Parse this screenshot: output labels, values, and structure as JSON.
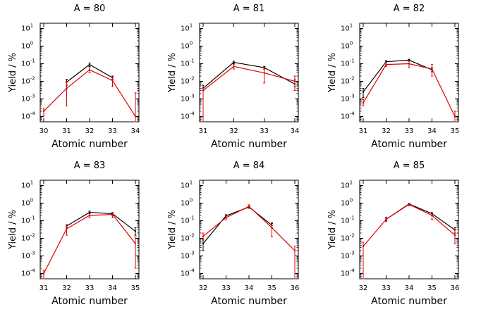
{
  "chart_data": [
    {
      "type": "line",
      "title": "A = 80",
      "xlabel": "Atomic number",
      "ylabel": "Yield / %",
      "yscale": "log",
      "ylim": [
        5e-05,
        20
      ],
      "yticks": [
        "10^1",
        "10^0",
        "10^-1",
        "10^-2",
        "10^-3",
        "10^-4"
      ],
      "x": [
        30,
        31,
        32,
        33,
        34
      ],
      "xlim": [
        30,
        34
      ],
      "series": [
        {
          "color": "#000000",
          "x": [
            31,
            32,
            33
          ],
          "y": [
            0.009,
            0.09,
            0.016
          ],
          "err_lo": [
            0.006,
            0.07,
            0.013
          ],
          "err_hi": [
            0.013,
            0.11,
            0.02
          ]
        },
        {
          "color": "#e00000",
          "x": [
            30,
            31,
            32,
            33,
            34
          ],
          "y": [
            0.0002,
            0.004,
            0.045,
            0.011,
            0.0001
          ],
          "err_lo": [
            0.00012,
            0.0004,
            0.03,
            0.005,
            3e-05
          ],
          "err_hi": [
            0.0003,
            0.01,
            0.06,
            0.017,
            0.0022
          ]
        }
      ]
    },
    {
      "type": "line",
      "title": "A = 81",
      "xlabel": "Atomic number",
      "ylabel": "Yield / %",
      "yscale": "log",
      "ylim": [
        5e-05,
        20
      ],
      "yticks": [
        "10^1",
        "10^0",
        "10^-1",
        "10^-2",
        "10^-3",
        "10^-4"
      ],
      "x": [
        31,
        32,
        33,
        34
      ],
      "xlim": [
        31,
        34
      ],
      "series": [
        {
          "color": "#000000",
          "x": [
            31,
            32,
            33,
            34
          ],
          "y": [
            0.004,
            0.12,
            0.06,
            0.007
          ],
          "err_lo": [
            0.003,
            0.1,
            0.05,
            0.005
          ],
          "err_hi": [
            0.006,
            0.14,
            0.07,
            0.012
          ]
        },
        {
          "color": "#e00000",
          "x": [
            31,
            32,
            33,
            34
          ],
          "y": [
            0.003,
            0.07,
            0.03,
            0.01
          ],
          "err_lo": [
            4e-05,
            0.05,
            0.008,
            0.003
          ],
          "err_hi": [
            0.004,
            0.09,
            0.06,
            0.02
          ]
        }
      ]
    },
    {
      "type": "line",
      "title": "A = 82",
      "xlabel": "Atomic number",
      "ylabel": "Yield / %",
      "yscale": "log",
      "ylim": [
        5e-05,
        20
      ],
      "yticks": [
        "10^1",
        "10^0",
        "10^-1",
        "10^-2",
        "10^-3",
        "10^-4"
      ],
      "x": [
        31,
        32,
        33,
        34,
        35
      ],
      "xlim": [
        31,
        35
      ],
      "series": [
        {
          "color": "#000000",
          "x": [
            31,
            32,
            33,
            34
          ],
          "y": [
            0.0025,
            0.13,
            0.16,
            0.045
          ],
          "err_lo": [
            0.0012,
            0.11,
            0.14,
            0.035
          ],
          "err_hi": [
            0.004,
            0.15,
            0.18,
            0.06
          ]
        },
        {
          "color": "#e00000",
          "x": [
            31,
            32,
            33,
            34,
            35
          ],
          "y": [
            0.0006,
            0.09,
            0.1,
            0.05,
            0.0001
          ],
          "err_lo": [
            0.0004,
            0.07,
            0.06,
            0.02,
            4e-05
          ],
          "err_hi": [
            0.0009,
            0.11,
            0.15,
            0.09,
            0.0002
          ]
        }
      ]
    },
    {
      "type": "line",
      "title": "A = 83",
      "xlabel": "Atomic number",
      "ylabel": "Yield / %",
      "yscale": "log",
      "ylim": [
        5e-05,
        20
      ],
      "yticks": [
        "10^1",
        "10^0",
        "10^-1",
        "10^-2",
        "10^-3",
        "10^-4"
      ],
      "x": [
        31,
        32,
        33,
        34,
        35
      ],
      "xlim": [
        31,
        35
      ],
      "series": [
        {
          "color": "#000000",
          "x": [
            32,
            33,
            34,
            35
          ],
          "y": [
            0.05,
            0.3,
            0.25,
            0.025
          ],
          "err_lo": [
            0.04,
            0.25,
            0.2,
            0.015
          ],
          "err_hi": [
            0.06,
            0.35,
            0.3,
            0.04
          ]
        },
        {
          "color": "#e00000",
          "x": [
            31,
            32,
            33,
            34,
            35
          ],
          "y": [
            0.0001,
            0.035,
            0.2,
            0.23,
            0.005
          ],
          "err_lo": [
            5e-05,
            0.015,
            0.15,
            0.15,
            0.0002
          ],
          "err_hi": [
            0.00016,
            0.06,
            0.25,
            0.3,
            0.012
          ]
        }
      ]
    },
    {
      "type": "line",
      "title": "A = 84",
      "xlabel": "Atomic number",
      "ylabel": "Yield / %",
      "yscale": "log",
      "ylim": [
        5e-05,
        20
      ],
      "yticks": [
        "10^1",
        "10^0",
        "10^-1",
        "10^-2",
        "10^-3",
        "10^-4"
      ],
      "x": [
        32,
        33,
        34,
        35,
        36
      ],
      "xlim": [
        32,
        36
      ],
      "series": [
        {
          "color": "#000000",
          "x": [
            32,
            33,
            34,
            35
          ],
          "y": [
            0.005,
            0.19,
            0.6,
            0.055
          ],
          "err_lo": [
            0.002,
            0.16,
            0.5,
            0.04
          ],
          "err_hi": [
            0.009,
            0.22,
            0.7,
            0.07
          ]
        },
        {
          "color": "#e00000",
          "x": [
            32,
            33,
            34,
            35,
            36
          ],
          "y": [
            0.013,
            0.15,
            0.65,
            0.04,
            0.002
          ],
          "err_lo": [
            0.008,
            0.11,
            0.5,
            0.012,
            5e-05
          ],
          "err_hi": [
            0.02,
            0.2,
            0.8,
            0.08,
            0.0035
          ]
        }
      ]
    },
    {
      "type": "line",
      "title": "A = 85",
      "xlabel": "Atomic number",
      "ylabel": "Yield / %",
      "yscale": "log",
      "ylim": [
        5e-05,
        20
      ],
      "yticks": [
        "10^1",
        "10^0",
        "10^-1",
        "10^-2",
        "10^-3",
        "10^-4"
      ],
      "x": [
        32,
        33,
        34,
        35,
        36
      ],
      "xlim": [
        32,
        36
      ],
      "series": [
        {
          "color": "#000000",
          "x": [
            33,
            34,
            35,
            36
          ],
          "y": [
            0.12,
            0.9,
            0.25,
            0.03
          ],
          "err_lo": [
            0.1,
            0.8,
            0.2,
            0.02
          ],
          "err_hi": [
            0.14,
            1.0,
            0.3,
            0.04
          ]
        },
        {
          "color": "#e00000",
          "x": [
            32,
            33,
            34,
            35,
            36
          ],
          "y": [
            0.0035,
            0.12,
            0.85,
            0.2,
            0.015
          ],
          "err_lo": [
            5e-05,
            0.09,
            0.7,
            0.12,
            0.005
          ],
          "err_hi": [
            0.006,
            0.16,
            1.0,
            0.3,
            0.03
          ]
        }
      ]
    }
  ]
}
